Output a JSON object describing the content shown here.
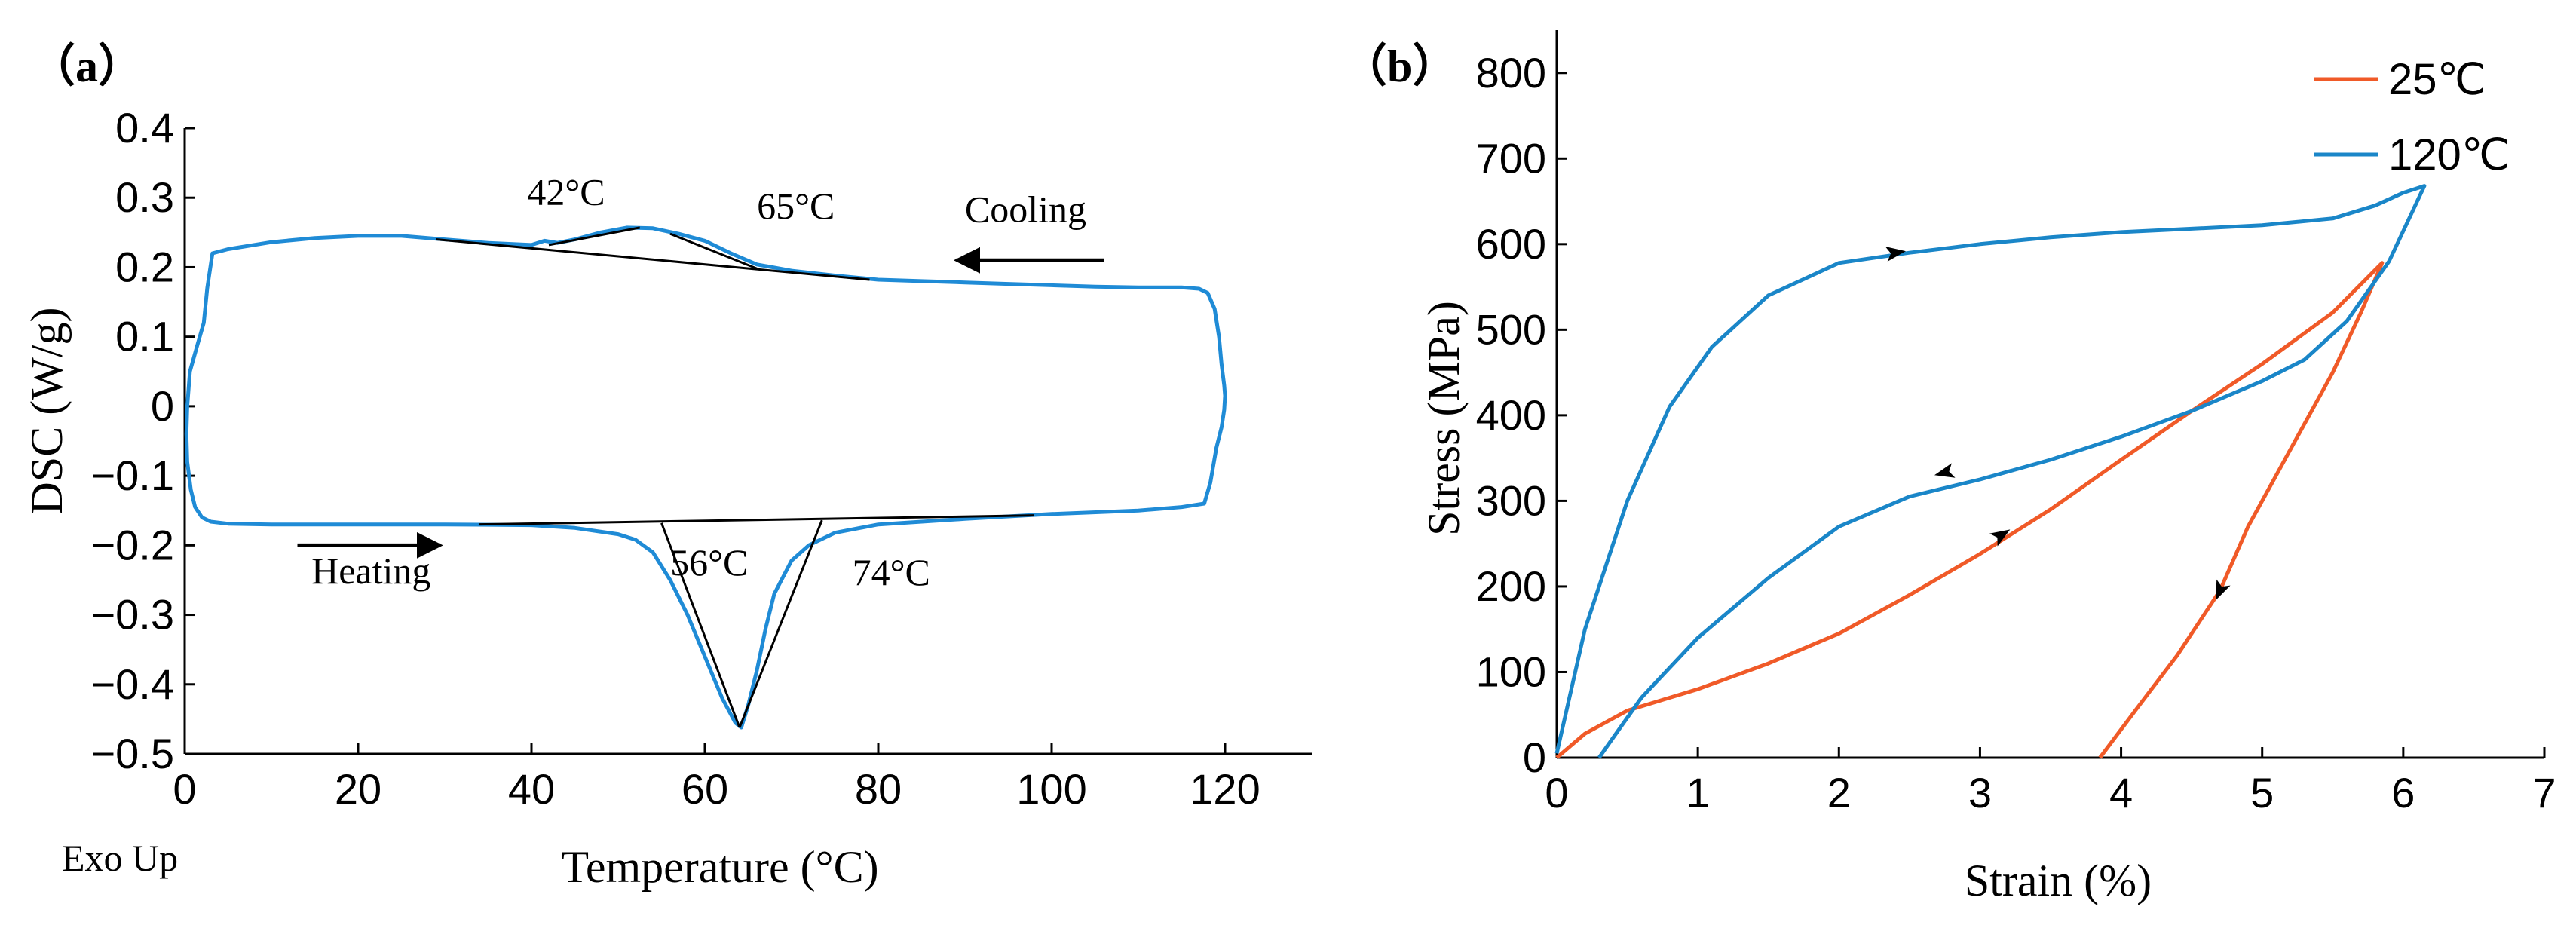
{
  "chart_data": [
    {
      "panel_label": "（a）",
      "type": "line",
      "xlabel": "Temperature (°C)",
      "ylabel": "DSC (W/g)",
      "xlim": [
        0,
        130
      ],
      "ylim": [
        -0.5,
        0.4
      ],
      "xticks": [
        0,
        20,
        40,
        60,
        80,
        100,
        120
      ],
      "yticks": [
        -0.5,
        -0.4,
        -0.3,
        -0.2,
        -0.1,
        0,
        0.1,
        0.2,
        0.3,
        0.4
      ],
      "ytick_labels": [
        "−0.5",
        "−0.4",
        "−0.3",
        "−0.2",
        "−0.1",
        "0",
        "0.1",
        "0.2",
        "0.3",
        "0.4"
      ],
      "grid": false,
      "color": "#1f8bd6",
      "exo_label": "Exo Up",
      "series": [
        {
          "values": [
            [
              0.3,
              0.0
            ],
            [
              0.6,
              0.05
            ],
            [
              1.5,
              0.09
            ],
            [
              2.2,
              0.12
            ],
            [
              2.6,
              0.17
            ],
            [
              3.2,
              0.22
            ],
            [
              5,
              0.226
            ],
            [
              10,
              0.236
            ],
            [
              15,
              0.242
            ],
            [
              20,
              0.245
            ],
            [
              25,
              0.245
            ],
            [
              30,
              0.24
            ],
            [
              35,
              0.235
            ],
            [
              40,
              0.232
            ],
            [
              41.5,
              0.238
            ],
            [
              43,
              0.235
            ],
            [
              45,
              0.24
            ],
            [
              48,
              0.25
            ],
            [
              51,
              0.257
            ],
            [
              54,
              0.256
            ],
            [
              57,
              0.248
            ],
            [
              60,
              0.238
            ],
            [
              63,
              0.22
            ],
            [
              66,
              0.204
            ],
            [
              70,
              0.195
            ],
            [
              75,
              0.188
            ],
            [
              80,
              0.182
            ],
            [
              85,
              0.18
            ],
            [
              90,
              0.178
            ],
            [
              95,
              0.176
            ],
            [
              100,
              0.174
            ],
            [
              105,
              0.172
            ],
            [
              110,
              0.171
            ],
            [
              115,
              0.171
            ],
            [
              117,
              0.169
            ],
            [
              118,
              0.163
            ],
            [
              118.8,
              0.14
            ],
            [
              119.3,
              0.1
            ],
            [
              119.6,
              0.06
            ],
            [
              119.9,
              0.03
            ],
            [
              120,
              0.015
            ],
            [
              119.9,
              -0.005
            ],
            [
              119.6,
              -0.03
            ],
            [
              119,
              -0.06
            ],
            [
              118.3,
              -0.11
            ],
            [
              117.6,
              -0.14
            ],
            [
              115,
              -0.145
            ],
            [
              110,
              -0.15
            ],
            [
              100,
              -0.155
            ],
            [
              90,
              -0.162
            ],
            [
              80,
              -0.17
            ],
            [
              75,
              -0.182
            ],
            [
              72,
              -0.2
            ],
            [
              70,
              -0.222
            ],
            [
              68,
              -0.27
            ],
            [
              67,
              -0.32
            ],
            [
              66,
              -0.38
            ],
            [
              65,
              -0.43
            ],
            [
              64.2,
              -0.462
            ],
            [
              63.5,
              -0.455
            ],
            [
              62,
              -0.42
            ],
            [
              60,
              -0.36
            ],
            [
              58,
              -0.3
            ],
            [
              56,
              -0.25
            ],
            [
              54,
              -0.21
            ],
            [
              52,
              -0.192
            ],
            [
              50,
              -0.184
            ],
            [
              45,
              -0.175
            ],
            [
              40,
              -0.171
            ],
            [
              30,
              -0.17
            ],
            [
              20,
              -0.17
            ],
            [
              10,
              -0.17
            ],
            [
              5,
              -0.169
            ],
            [
              3,
              -0.166
            ],
            [
              2,
              -0.16
            ],
            [
              1.2,
              -0.145
            ],
            [
              0.7,
              -0.12
            ],
            [
              0.3,
              -0.08
            ],
            [
              0.2,
              -0.04
            ],
            [
              0.3,
              0.0
            ]
          ]
        }
      ],
      "baselines": [
        [
          [
            29,
            0.24
          ],
          [
            79,
            0.182
          ]
        ],
        [
          [
            34,
            -0.17
          ],
          [
            98,
            -0.157
          ]
        ],
        [
          [
            42,
            0.232
          ],
          [
            52.5,
            0.257
          ]
        ],
        [
          [
            56,
            0.248
          ],
          [
            66,
            0.198
          ]
        ],
        [
          [
            55,
            -0.168
          ],
          [
            64,
            -0.462
          ]
        ],
        [
          [
            64,
            -0.462
          ],
          [
            73.5,
            -0.164
          ]
        ]
      ],
      "annotations": [
        {
          "text": "42°C",
          "x": 44,
          "y": 0.29
        },
        {
          "text": "65°C",
          "x": 70.5,
          "y": 0.27
        },
        {
          "text": "56°C",
          "x": 60.5,
          "y": -0.243
        },
        {
          "text": "74°C",
          "x": 81.5,
          "y": -0.257
        },
        {
          "text": "Cooling",
          "x": 97,
          "y": 0.265
        },
        {
          "text": "Heating",
          "x": 21.5,
          "y": -0.255
        }
      ],
      "arrows": [
        {
          "label": "Cooling",
          "from": [
            106,
            0.21
          ],
          "to": [
            89,
            0.21
          ]
        },
        {
          "label": "Heating",
          "from": [
            13,
            -0.2
          ],
          "to": [
            29.5,
            -0.2
          ]
        }
      ]
    },
    {
      "panel_label": "（b）",
      "type": "line",
      "xlabel": "Strain (%)",
      "ylabel": "Stress (MPa)",
      "xlim": [
        0,
        7
      ],
      "ylim": [
        0,
        850
      ],
      "xticks": [
        0,
        1,
        2,
        3,
        4,
        5,
        6,
        7
      ],
      "yticks": [
        0,
        100,
        200,
        300,
        400,
        500,
        600,
        700,
        800
      ],
      "grid": false,
      "legend_position": "top-right",
      "series": [
        {
          "name": "25℃",
          "color": "#f05a28",
          "values": [
            [
              0,
              0
            ],
            [
              0.2,
              28
            ],
            [
              0.5,
              55
            ],
            [
              0.8,
              70
            ],
            [
              1,
              80
            ],
            [
              1.5,
              110
            ],
            [
              2,
              145
            ],
            [
              2.5,
              190
            ],
            [
              3,
              238
            ],
            [
              3.5,
              290
            ],
            [
              4,
              348
            ],
            [
              4.5,
              405
            ],
            [
              5,
              460
            ],
            [
              5.5,
              520
            ],
            [
              5.85,
              578
            ],
            [
              5.7,
              520
            ],
            [
              5.5,
              450
            ],
            [
              5.2,
              360
            ],
            [
              4.9,
              270
            ],
            [
              4.7,
              195
            ],
            [
              4.4,
              120
            ],
            [
              4.1,
              55
            ],
            [
              3.85,
              0
            ]
          ],
          "direction_arrows": [
            [
              3.15,
              260
            ],
            [
              4.7,
              195
            ]
          ]
        },
        {
          "name": "120℃",
          "color": "#1a86c8",
          "values": [
            [
              0,
              5
            ],
            [
              0.2,
              150
            ],
            [
              0.5,
              300
            ],
            [
              0.8,
              410
            ],
            [
              1.1,
              480
            ],
            [
              1.5,
              540
            ],
            [
              2,
              578
            ],
            [
              2.5,
              590
            ],
            [
              3,
              600
            ],
            [
              3.5,
              608
            ],
            [
              4,
              614
            ],
            [
              4.5,
              618
            ],
            [
              5,
              622
            ],
            [
              5.5,
              630
            ],
            [
              5.8,
              645
            ],
            [
              6,
              660
            ],
            [
              6.15,
              668
            ],
            [
              5.9,
              580
            ],
            [
              5.6,
              510
            ],
            [
              5.3,
              465
            ],
            [
              5,
              440
            ],
            [
              4.5,
              405
            ],
            [
              4,
              375
            ],
            [
              3.5,
              348
            ],
            [
              3,
              325
            ],
            [
              2.5,
              305
            ],
            [
              2,
              270
            ],
            [
              1.5,
              210
            ],
            [
              1,
              140
            ],
            [
              0.6,
              70
            ],
            [
              0.3,
              0
            ]
          ],
          "direction_arrows": [
            [
              2.4,
              590
            ],
            [
              2.75,
              333
            ]
          ]
        }
      ]
    }
  ]
}
